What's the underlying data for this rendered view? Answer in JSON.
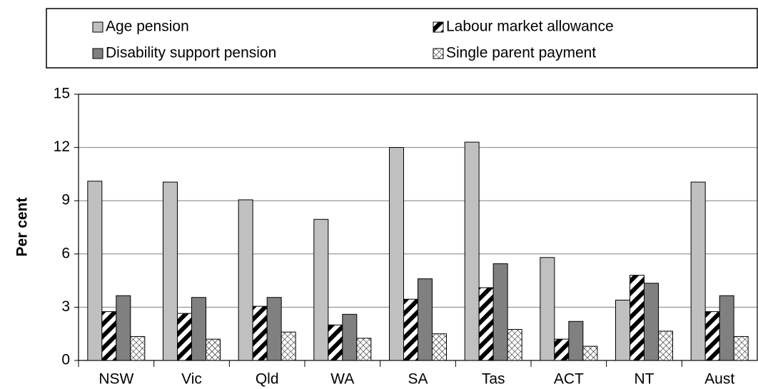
{
  "chart_data": {
    "type": "bar",
    "y_label": "Per cent",
    "categories": [
      "NSW",
      "Vic",
      "Qld",
      "WA",
      "SA",
      "Tas",
      "ACT",
      "NT",
      "Aust"
    ],
    "series": [
      {
        "name": "Age pension",
        "color": "#c0c0c0",
        "hatch": "none",
        "values": [
          10.1,
          10.05,
          9.05,
          7.95,
          12.0,
          12.3,
          5.8,
          3.4,
          10.05
        ]
      },
      {
        "name": "Labour market allowance",
        "color": "#000000",
        "hatch": "diagonal",
        "values": [
          2.75,
          2.65,
          3.05,
          2.0,
          3.45,
          4.1,
          1.2,
          4.8,
          2.75
        ]
      },
      {
        "name": "Disability support pension",
        "color": "#808080",
        "hatch": "none",
        "values": [
          3.65,
          3.55,
          3.55,
          2.6,
          4.6,
          5.45,
          2.2,
          4.35,
          3.65
        ]
      },
      {
        "name": "Single parent payment",
        "color": "#000000",
        "hatch": "cross",
        "values": [
          1.35,
          1.2,
          1.6,
          1.25,
          1.5,
          1.75,
          0.8,
          1.65,
          1.35
        ]
      }
    ],
    "ylim": [
      0,
      15
    ],
    "yticks": [
      0,
      3,
      6,
      9,
      12,
      15
    ],
    "grid": true,
    "legend": "top"
  }
}
